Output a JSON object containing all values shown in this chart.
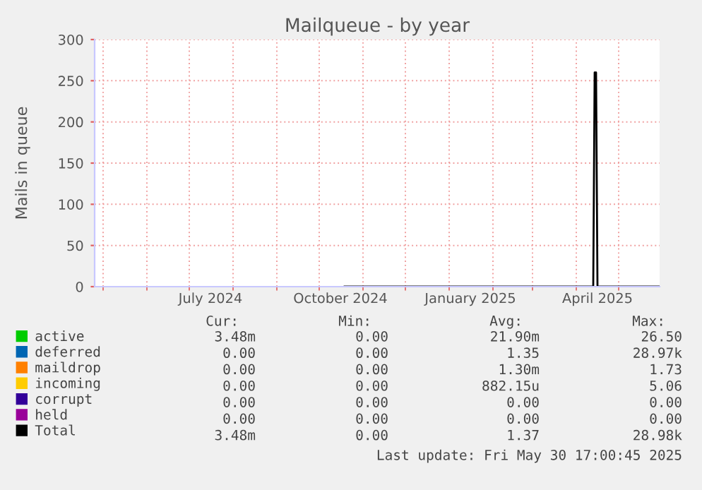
{
  "chart_data": {
    "type": "line",
    "title": "Mailqueue - by year",
    "ylabel": "Mails in queue",
    "x": [
      "2024-10-19",
      "2025-04-13",
      "2025-04-14",
      "2025-04-15",
      "2025-04-16",
      "2025-05-30"
    ],
    "series": [
      {
        "name": "active",
        "color": "#00cc00",
        "values": [
          null,
          null,
          null,
          null,
          null,
          null
        ]
      },
      {
        "name": "deferred",
        "color": "#0066b3",
        "values": [
          null,
          null,
          null,
          null,
          null,
          null
        ]
      },
      {
        "name": "maildrop",
        "color": "#ff8000",
        "values": [
          null,
          null,
          null,
          null,
          null,
          null
        ]
      },
      {
        "name": "incoming",
        "color": "#ffcc00",
        "values": [
          null,
          null,
          null,
          null,
          null,
          null
        ]
      },
      {
        "name": "corrupt",
        "color": "#330099",
        "values": [
          null,
          null,
          null,
          null,
          null,
          null
        ]
      },
      {
        "name": "held",
        "color": "#990099",
        "values": [
          null,
          null,
          null,
          null,
          null,
          null
        ]
      },
      {
        "name": "Total",
        "color": "#000000",
        "values": [
          0,
          0,
          260,
          260,
          0,
          0
        ]
      }
    ],
    "xlim": [
      "2024-04-25",
      "2025-05-30"
    ],
    "xticks": [
      {
        "value": "2024-05-01",
        "label": null
      },
      {
        "value": "2024-06-01",
        "label": null
      },
      {
        "value": "2024-07-01",
        "label": null
      },
      {
        "value": "2024-07-16",
        "label": "July 2024"
      },
      {
        "value": "2024-08-01",
        "label": null
      },
      {
        "value": "2024-09-01",
        "label": null
      },
      {
        "value": "2024-10-01",
        "label": null
      },
      {
        "value": "2024-10-16",
        "label": "October 2024"
      },
      {
        "value": "2024-11-01",
        "label": null
      },
      {
        "value": "2024-12-01",
        "label": null
      },
      {
        "value": "2025-01-01",
        "label": null
      },
      {
        "value": "2025-01-16",
        "label": "January 2025"
      },
      {
        "value": "2025-02-01",
        "label": null
      },
      {
        "value": "2025-03-01",
        "label": null
      },
      {
        "value": "2025-04-01",
        "label": null
      },
      {
        "value": "2025-04-16",
        "label": "April 2025"
      },
      {
        "value": "2025-05-01",
        "label": null
      }
    ],
    "ylim": [
      0,
      300
    ],
    "yticks": [
      0,
      50,
      100,
      150,
      200,
      250,
      300
    ],
    "grid": true,
    "legend": "bottom",
    "annotations": [
      "Cur:",
      "Min:",
      "Avg:",
      "Max:",
      "3.48m",
      "0.00",
      "21.90m",
      "26.50",
      "0.00",
      "0.00",
      "1.35",
      "28.97k",
      "0.00",
      "0.00",
      "1.30m",
      "1.73",
      "0.00",
      "0.00",
      "882.15u",
      "5.06",
      "0.00",
      "0.00",
      "0.00",
      "0.00",
      "0.00",
      "0.00",
      "0.00",
      "0.00",
      "3.48m",
      "0.00",
      "1.37",
      "28.98k",
      "Last update: Fri May 30 17:00:45 2025"
    ]
  }
}
